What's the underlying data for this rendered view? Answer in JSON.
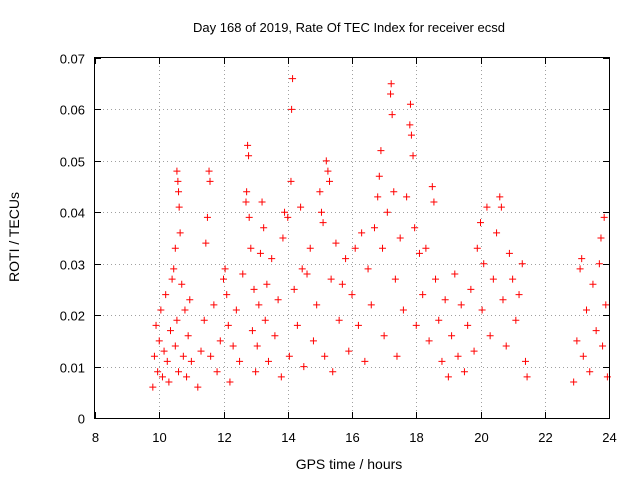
{
  "chart_data": {
    "type": "scatter",
    "title": "Day 168 of 2019, Rate Of TEC Index for receiver ecsd",
    "xlabel": "GPS time / hours",
    "ylabel": "ROTI / TECUs",
    "xlim": [
      8,
      24
    ],
    "ylim": [
      0,
      0.07
    ],
    "x_ticks": [
      8,
      10,
      12,
      14,
      16,
      18,
      20,
      22,
      24
    ],
    "y_ticks": [
      0,
      0.01,
      0.02,
      0.03,
      0.04,
      0.05,
      0.06,
      0.07
    ],
    "x_tick_labels": [
      "8",
      "10",
      "12",
      "14",
      "16",
      "18",
      "20",
      "22",
      "24"
    ],
    "y_tick_labels": [
      "0",
      "0.01",
      "0.02",
      "0.03",
      "0.04",
      "0.05",
      "0.06",
      "0.07"
    ],
    "grid": true,
    "marker": "+",
    "series": [
      {
        "name": "ROTI",
        "color": "#ff0000",
        "points": [
          [
            9.8,
            0.006
          ],
          [
            9.85,
            0.012
          ],
          [
            9.9,
            0.018
          ],
          [
            9.95,
            0.009
          ],
          [
            10.0,
            0.015
          ],
          [
            10.05,
            0.021
          ],
          [
            10.1,
            0.008
          ],
          [
            10.15,
            0.013
          ],
          [
            10.2,
            0.024
          ],
          [
            10.25,
            0.011
          ],
          [
            10.3,
            0.007
          ],
          [
            10.35,
            0.017
          ],
          [
            10.4,
            0.027
          ],
          [
            10.45,
            0.029
          ],
          [
            10.5,
            0.033
          ],
          [
            10.55,
            0.048
          ],
          [
            10.58,
            0.046
          ],
          [
            10.6,
            0.044
          ],
          [
            10.62,
            0.041
          ],
          [
            10.65,
            0.036
          ],
          [
            10.5,
            0.014
          ],
          [
            10.55,
            0.019
          ],
          [
            10.6,
            0.009
          ],
          [
            10.7,
            0.026
          ],
          [
            10.75,
            0.012
          ],
          [
            10.8,
            0.021
          ],
          [
            10.85,
            0.008
          ],
          [
            10.9,
            0.016
          ],
          [
            10.95,
            0.023
          ],
          [
            11.0,
            0.011
          ],
          [
            11.2,
            0.006
          ],
          [
            11.3,
            0.013
          ],
          [
            11.4,
            0.019
          ],
          [
            11.45,
            0.034
          ],
          [
            11.5,
            0.039
          ],
          [
            11.55,
            0.048
          ],
          [
            11.58,
            0.046
          ],
          [
            11.6,
            0.012
          ],
          [
            11.7,
            0.022
          ],
          [
            11.8,
            0.009
          ],
          [
            11.9,
            0.015
          ],
          [
            12.0,
            0.027
          ],
          [
            12.05,
            0.029
          ],
          [
            12.1,
            0.024
          ],
          [
            12.15,
            0.018
          ],
          [
            12.2,
            0.007
          ],
          [
            12.3,
            0.014
          ],
          [
            12.4,
            0.021
          ],
          [
            12.5,
            0.011
          ],
          [
            12.6,
            0.028
          ],
          [
            12.7,
            0.042
          ],
          [
            12.72,
            0.044
          ],
          [
            12.75,
            0.053
          ],
          [
            12.78,
            0.051
          ],
          [
            12.8,
            0.039
          ],
          [
            12.85,
            0.033
          ],
          [
            12.9,
            0.017
          ],
          [
            12.95,
            0.025
          ],
          [
            13.0,
            0.009
          ],
          [
            13.05,
            0.014
          ],
          [
            13.1,
            0.022
          ],
          [
            13.15,
            0.032
          ],
          [
            13.2,
            0.042
          ],
          [
            13.25,
            0.037
          ],
          [
            13.3,
            0.019
          ],
          [
            13.35,
            0.026
          ],
          [
            13.4,
            0.011
          ],
          [
            13.5,
            0.031
          ],
          [
            13.6,
            0.016
          ],
          [
            13.7,
            0.023
          ],
          [
            13.8,
            0.008
          ],
          [
            13.85,
            0.035
          ],
          [
            13.9,
            0.04
          ],
          [
            14.0,
            0.039
          ],
          [
            14.05,
            0.012
          ],
          [
            14.1,
            0.046
          ],
          [
            14.12,
            0.06
          ],
          [
            14.15,
            0.066
          ],
          [
            14.2,
            0.025
          ],
          [
            14.3,
            0.018
          ],
          [
            14.4,
            0.041
          ],
          [
            14.45,
            0.029
          ],
          [
            14.5,
            0.01
          ],
          [
            14.6,
            0.028
          ],
          [
            14.7,
            0.033
          ],
          [
            14.8,
            0.015
          ],
          [
            14.9,
            0.022
          ],
          [
            15.0,
            0.044
          ],
          [
            15.05,
            0.04
          ],
          [
            15.1,
            0.038
          ],
          [
            15.15,
            0.012
          ],
          [
            15.2,
            0.05
          ],
          [
            15.25,
            0.048
          ],
          [
            15.3,
            0.046
          ],
          [
            15.35,
            0.027
          ],
          [
            15.4,
            0.009
          ],
          [
            15.5,
            0.034
          ],
          [
            15.6,
            0.019
          ],
          [
            15.7,
            0.026
          ],
          [
            15.8,
            0.031
          ],
          [
            15.9,
            0.013
          ],
          [
            16.0,
            0.024
          ],
          [
            16.1,
            0.033
          ],
          [
            16.2,
            0.018
          ],
          [
            16.3,
            0.036
          ],
          [
            16.4,
            0.011
          ],
          [
            16.5,
            0.029
          ],
          [
            16.6,
            0.022
          ],
          [
            16.7,
            0.037
          ],
          [
            16.8,
            0.043
          ],
          [
            16.85,
            0.047
          ],
          [
            16.9,
            0.052
          ],
          [
            16.95,
            0.033
          ],
          [
            17.0,
            0.016
          ],
          [
            17.1,
            0.04
          ],
          [
            17.2,
            0.063
          ],
          [
            17.22,
            0.065
          ],
          [
            17.25,
            0.059
          ],
          [
            17.3,
            0.044
          ],
          [
            17.35,
            0.027
          ],
          [
            17.4,
            0.012
          ],
          [
            17.5,
            0.035
          ],
          [
            17.6,
            0.021
          ],
          [
            17.7,
            0.043
          ],
          [
            17.8,
            0.057
          ],
          [
            17.82,
            0.061
          ],
          [
            17.85,
            0.055
          ],
          [
            17.9,
            0.051
          ],
          [
            17.95,
            0.037
          ],
          [
            18.0,
            0.018
          ],
          [
            18.1,
            0.032
          ],
          [
            18.2,
            0.024
          ],
          [
            18.3,
            0.033
          ],
          [
            18.4,
            0.015
          ],
          [
            18.5,
            0.045
          ],
          [
            18.55,
            0.042
          ],
          [
            18.6,
            0.027
          ],
          [
            18.7,
            0.019
          ],
          [
            18.8,
            0.011
          ],
          [
            18.9,
            0.023
          ],
          [
            19.0,
            0.008
          ],
          [
            19.1,
            0.016
          ],
          [
            19.2,
            0.028
          ],
          [
            19.3,
            0.012
          ],
          [
            19.4,
            0.022
          ],
          [
            19.5,
            0.009
          ],
          [
            19.6,
            0.018
          ],
          [
            19.7,
            0.025
          ],
          [
            19.8,
            0.013
          ],
          [
            19.9,
            0.033
          ],
          [
            20.0,
            0.038
          ],
          [
            20.05,
            0.021
          ],
          [
            20.1,
            0.03
          ],
          [
            20.2,
            0.041
          ],
          [
            20.3,
            0.016
          ],
          [
            20.4,
            0.027
          ],
          [
            20.5,
            0.036
          ],
          [
            20.6,
            0.043
          ],
          [
            20.65,
            0.041
          ],
          [
            20.7,
            0.023
          ],
          [
            20.8,
            0.014
          ],
          [
            20.9,
            0.032
          ],
          [
            21.0,
            0.027
          ],
          [
            21.1,
            0.019
          ],
          [
            21.2,
            0.024
          ],
          [
            21.3,
            0.03
          ],
          [
            21.4,
            0.011
          ],
          [
            21.45,
            0.008
          ],
          [
            22.9,
            0.007
          ],
          [
            23.0,
            0.015
          ],
          [
            23.1,
            0.029
          ],
          [
            23.15,
            0.031
          ],
          [
            23.2,
            0.012
          ],
          [
            23.3,
            0.021
          ],
          [
            23.4,
            0.009
          ],
          [
            23.5,
            0.026
          ],
          [
            23.6,
            0.017
          ],
          [
            23.7,
            0.03
          ],
          [
            23.75,
            0.035
          ],
          [
            23.8,
            0.014
          ],
          [
            23.85,
            0.039
          ],
          [
            23.9,
            0.022
          ],
          [
            23.95,
            0.008
          ]
        ]
      }
    ]
  }
}
